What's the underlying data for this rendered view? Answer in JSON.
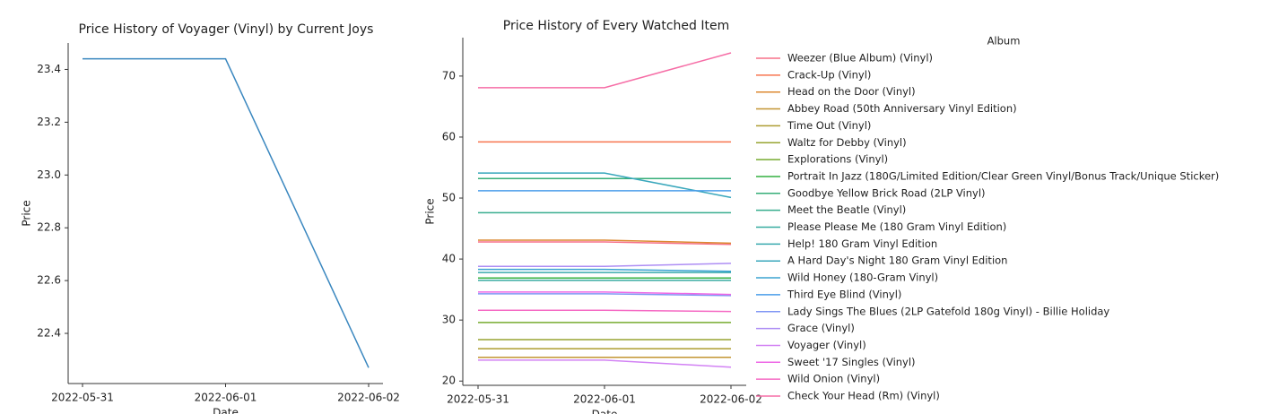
{
  "chart_data": [
    {
      "type": "line",
      "title": "Price History of Voyager (Vinyl) by Current Joys",
      "x_label": "Date",
      "y_label": "Price",
      "x": [
        "2022-05-31",
        "2022-06-01",
        "2022-06-02"
      ],
      "series": [
        {
          "name": null,
          "color": "#3a87bf",
          "values": [
            23.44,
            23.44,
            22.27
          ]
        }
      ],
      "ylim": [
        22.21,
        23.5
      ],
      "yticks": [
        22.4,
        22.6,
        22.8,
        {
          "value": 23,
          "label": "23.0"
        },
        23.2,
        23.4
      ]
    },
    {
      "type": "line",
      "title": "Price History of Every Watched Item",
      "x_label": "Date",
      "y_label": "Price",
      "legend_title": "Album",
      "x": [
        "2022-05-31",
        "2022-06-01",
        "2022-06-02"
      ],
      "series": [
        {
          "name": "Weezer (Blue Album) (Vinyl)",
          "color": "#f77189",
          "values": [
            42.8,
            42.8,
            42.4
          ]
        },
        {
          "name": "Crack-Up (Vinyl)",
          "color": "#f7754f",
          "values": [
            59.2,
            59.2,
            59.2
          ]
        },
        {
          "name": "Head on the Door (Vinyl)",
          "color": "#dc8932",
          "values": [
            43.1,
            43.1,
            42.6
          ]
        },
        {
          "name": "Abbey Road (50th Anniversary Vinyl Edition)",
          "color": "#c39532",
          "values": [
            23.9,
            23.9,
            23.9
          ]
        },
        {
          "name": "Time Out (Vinyl)",
          "color": "#ae9d31",
          "values": [
            25.3,
            25.3,
            25.3
          ]
        },
        {
          "name": "Waltz for Debby (Vinyl)",
          "color": "#97a431",
          "values": [
            26.8,
            26.8,
            26.8
          ]
        },
        {
          "name": "Explorations (Vinyl)",
          "color": "#77ab31",
          "values": [
            29.6,
            29.6,
            29.6
          ]
        },
        {
          "name": "Portrait In Jazz (180G/Limited Edition/Clear Green Vinyl/Bonus Track/Unique Sticker)",
          "color": "#33b040",
          "values": [
            36.9,
            36.9,
            36.9
          ]
        },
        {
          "name": "Goodbye Yellow Brick Road (2LP Vinyl)",
          "color": "#35ae77",
          "values": [
            53.2,
            53.2,
            53.2
          ]
        },
        {
          "name": "Meet the Beatle (Vinyl)",
          "color": "#36ad8e",
          "values": [
            47.6,
            47.6,
            47.6
          ]
        },
        {
          "name": "Please Please Me (180 Gram Vinyl Edition)",
          "color": "#37aba0",
          "values": [
            36.5,
            36.5,
            36.5
          ]
        },
        {
          "name": "Help! 180 Gram Vinyl Edition",
          "color": "#38a9ae",
          "values": [
            37.8,
            37.8,
            37.8
          ]
        },
        {
          "name": "A Hard Day's Night 180 Gram Vinyl Edition",
          "color": "#39a7bc",
          "values": [
            54.1,
            54.1,
            50.1
          ]
        },
        {
          "name": "Wild Honey (180-Gram Vinyl)",
          "color": "#3ba3d1",
          "values": [
            38.3,
            38.3,
            38.0
          ]
        },
        {
          "name": "Third Eye Blind (Vinyl)",
          "color": "#4b9ee9",
          "values": [
            51.2,
            51.2,
            51.2
          ]
        },
        {
          "name": "Lady Sings The Blues (2LP Gatefold 180g Vinyl) - Billie Holiday",
          "color": "#8197f4",
          "values": [
            34.3,
            34.3,
            34.0
          ]
        },
        {
          "name": "Grace (Vinyl)",
          "color": "#ae8ef4",
          "values": [
            38.8,
            38.8,
            39.3
          ]
        },
        {
          "name": "Voyager (Vinyl)",
          "color": "#d282f4",
          "values": [
            23.44,
            23.44,
            22.27
          ]
        },
        {
          "name": "Sweet '17 Singles (Vinyl)",
          "color": "#ee68e6",
          "values": [
            34.6,
            34.6,
            34.2
          ]
        },
        {
          "name": "Wild Onion (Vinyl)",
          "color": "#f56bc4",
          "values": [
            31.6,
            31.6,
            31.4
          ]
        },
        {
          "name": "Check Your Head (Rm) (Vinyl)",
          "color": "#f66da6",
          "values": [
            68.1,
            68.1,
            73.8
          ]
        }
      ],
      "ylim": [
        19.3,
        76.3
      ],
      "yticks": [
        20,
        30,
        40,
        50,
        60,
        70
      ]
    }
  ]
}
